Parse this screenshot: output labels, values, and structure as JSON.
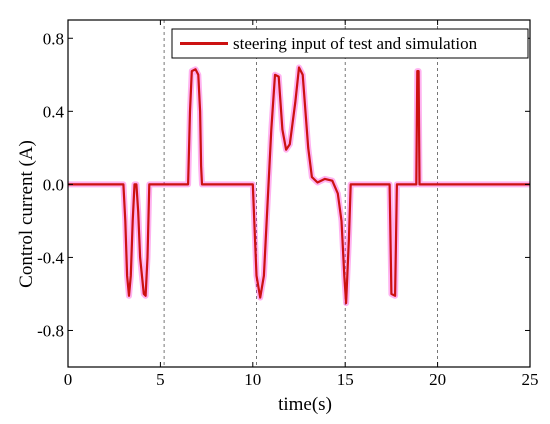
{
  "chart_data": {
    "type": "line",
    "xlabel": "time(s)",
    "ylabel": "Control current (A)",
    "xlim": [
      0,
      25
    ],
    "ylim": [
      -1.0,
      0.9
    ],
    "x_ticks": [
      0,
      5,
      10,
      15,
      20,
      25
    ],
    "y_ticks": [
      -0.8,
      -0.4,
      0.0,
      0.4,
      0.8
    ],
    "y_tick_labels": [
      "-0.8",
      "-0.4",
      "0.0",
      "0.4",
      "0.8"
    ],
    "vertical_dashed_lines": [
      5.2,
      10.2,
      15.0,
      20.0
    ],
    "legend": {
      "position": "top-right",
      "entries": [
        "steering input of test and simulation"
      ]
    },
    "colors": {
      "test": "#ff00cc",
      "simulation": "#cc1111"
    },
    "series": [
      {
        "name": "steering input of test and simulation",
        "color": "#cc1111",
        "points": [
          [
            0,
            0
          ],
          [
            3.0,
            0
          ],
          [
            3.1,
            -0.2
          ],
          [
            3.2,
            -0.5
          ],
          [
            3.3,
            -0.61
          ],
          [
            3.4,
            -0.5
          ],
          [
            3.5,
            -0.2
          ],
          [
            3.6,
            0
          ],
          [
            3.7,
            0
          ],
          [
            3.8,
            -0.15
          ],
          [
            3.9,
            -0.4
          ],
          [
            4.1,
            -0.6
          ],
          [
            4.2,
            -0.61
          ],
          [
            4.3,
            -0.4
          ],
          [
            4.4,
            0
          ],
          [
            6.5,
            0
          ],
          [
            6.6,
            0.4
          ],
          [
            6.7,
            0.62
          ],
          [
            6.9,
            0.63
          ],
          [
            7.05,
            0.6
          ],
          [
            7.15,
            0.4
          ],
          [
            7.2,
            0.1
          ],
          [
            7.25,
            0
          ],
          [
            10.0,
            0
          ],
          [
            10.2,
            -0.5
          ],
          [
            10.4,
            -0.62
          ],
          [
            10.6,
            -0.5
          ],
          [
            10.8,
            -0.1
          ],
          [
            11.0,
            0.3
          ],
          [
            11.2,
            0.6
          ],
          [
            11.4,
            0.59
          ],
          [
            11.6,
            0.3
          ],
          [
            11.8,
            0.19
          ],
          [
            12.0,
            0.22
          ],
          [
            12.3,
            0.45
          ],
          [
            12.5,
            0.64
          ],
          [
            12.7,
            0.6
          ],
          [
            13.0,
            0.2
          ],
          [
            13.2,
            0.04
          ],
          [
            13.5,
            0.01
          ],
          [
            13.9,
            0.03
          ],
          [
            14.3,
            0.02
          ],
          [
            14.6,
            -0.05
          ],
          [
            14.8,
            -0.2
          ],
          [
            14.95,
            -0.5
          ],
          [
            15.05,
            -0.65
          ],
          [
            15.2,
            -0.3
          ],
          [
            15.3,
            0
          ],
          [
            17.4,
            0
          ],
          [
            17.5,
            -0.6
          ],
          [
            17.7,
            -0.61
          ],
          [
            17.8,
            0
          ],
          [
            18.85,
            0
          ],
          [
            18.9,
            0.62
          ],
          [
            18.97,
            0.62
          ],
          [
            19.02,
            0
          ],
          [
            25,
            0
          ]
        ]
      }
    ]
  }
}
